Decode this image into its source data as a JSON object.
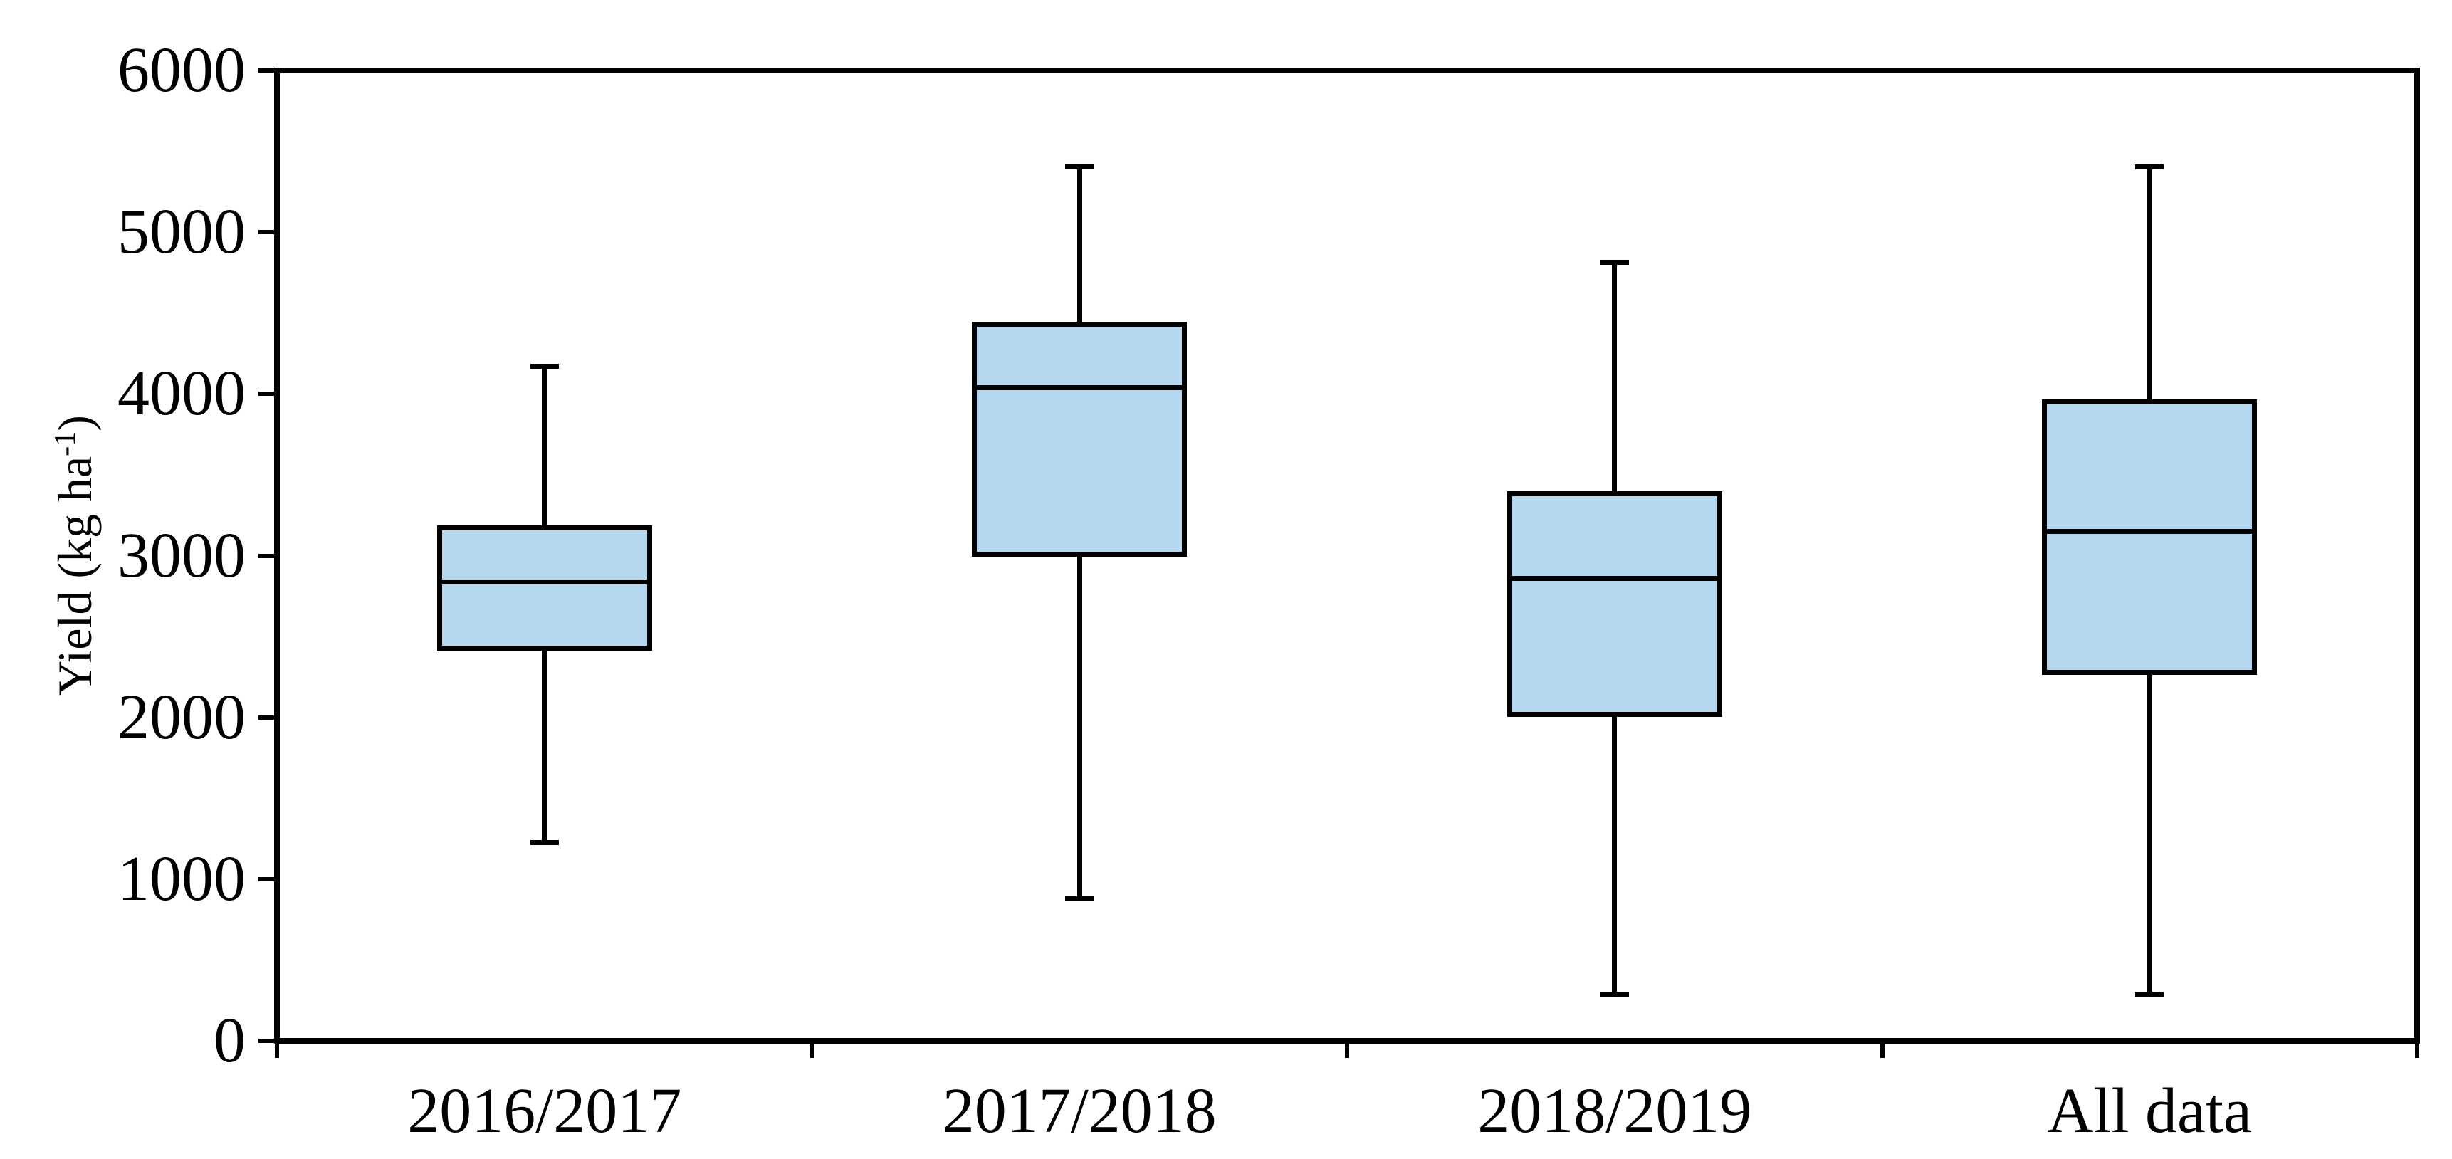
{
  "chart_data": {
    "type": "boxplot",
    "title": "",
    "ylabel": {
      "prefix": "Yield (kg ha",
      "superscript": "-1",
      "suffix": ")"
    },
    "xlabel": "",
    "categories": [
      "2016/2017",
      "2017/2018",
      "2018/2019",
      "All data"
    ],
    "series": [
      {
        "category": "2016/2017",
        "min": 1230,
        "q1": 2430,
        "median": 2840,
        "q3": 3170,
        "max": 4170
      },
      {
        "category": "2017/2018",
        "min": 880,
        "q1": 3010,
        "median": 4040,
        "q3": 4430,
        "max": 5400
      },
      {
        "category": "2018/2019",
        "min": 290,
        "q1": 2020,
        "median": 2860,
        "q3": 3380,
        "max": 4810
      },
      {
        "category": "All data",
        "min": 290,
        "q1": 2280,
        "median": 3150,
        "q3": 3950,
        "max": 5400
      }
    ],
    "ylim": [
      0,
      6000
    ],
    "ytick_interval": 1000,
    "ytick_labels": [
      "0",
      "1000",
      "2000",
      "3000",
      "4000",
      "5000",
      "6000"
    ],
    "grid": false,
    "legend": false,
    "box_fill_color": "#B4D7EF",
    "line_color": "#000000",
    "background_color": "#FFFFFF"
  }
}
